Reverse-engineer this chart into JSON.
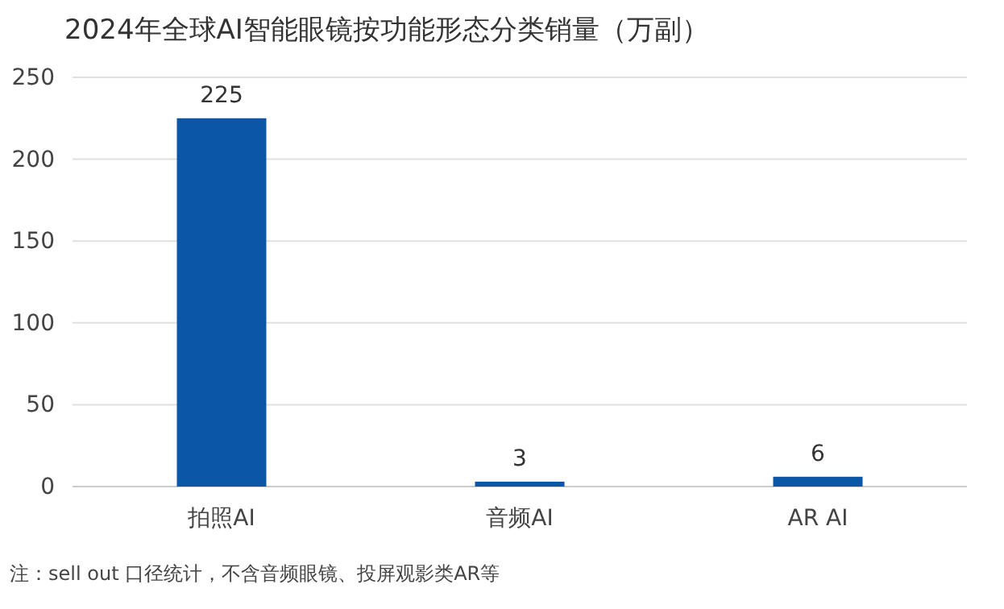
{
  "chart_data": {
    "type": "bar",
    "title": "2024年全球AI智能眼镜按功能形态分类销量（万副）",
    "categories": [
      "拍照AI",
      "音频AI",
      "AR AI"
    ],
    "values": [
      225,
      3,
      6
    ],
    "color": "#0c56a8",
    "ylim": [
      0,
      250
    ],
    "yticks": [
      0,
      50,
      100,
      150,
      200,
      250
    ],
    "grid": "y",
    "data_labels": true,
    "annotations": [
      "注：sell out 口径统计，不含音频眼镜、投屏观影类AR等"
    ]
  }
}
